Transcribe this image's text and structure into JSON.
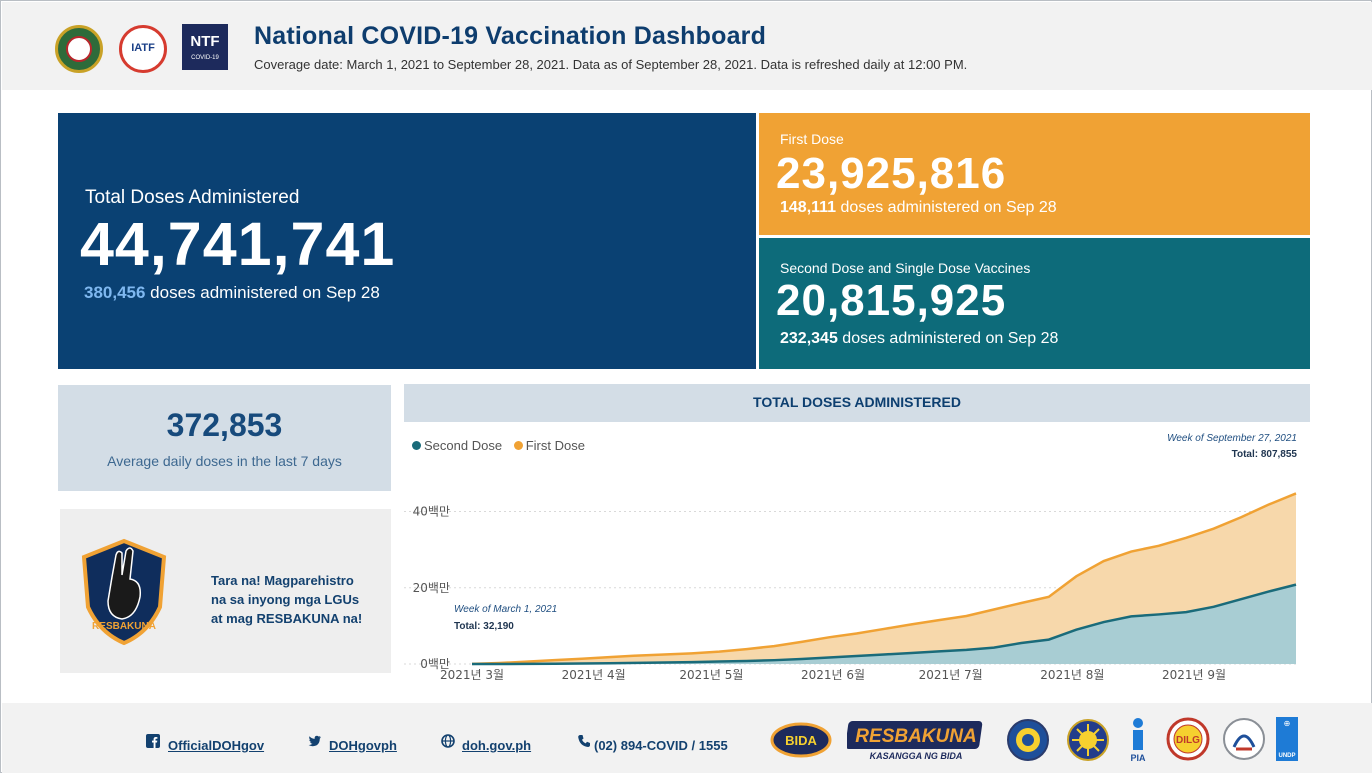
{
  "header": {
    "title": "National COVID-19 Vaccination Dashboard",
    "subtitle": "Coverage date: March 1, 2021 to September 28, 2021. Data as of September 28, 2021. Data is refreshed daily at 12:00 PM.",
    "logos": {
      "iatf": "IATF",
      "ntf": "NTF",
      "ntf_sub": "COVID-19"
    }
  },
  "total": {
    "label": "Total Doses Administered",
    "value": "44,741,741",
    "daily_value": "380,456",
    "daily_text": " doses administered on Sep 28"
  },
  "first_dose": {
    "label": "First Dose",
    "value": "23,925,816",
    "daily_value": "148,111",
    "daily_text": " doses administered on Sep 28"
  },
  "second_dose": {
    "label": "Second Dose and Single Dose Vaccines",
    "value": "20,815,925",
    "daily_value": "232,345",
    "daily_text": " doses administered on Sep 28"
  },
  "average": {
    "value": "372,853",
    "label": "Average daily doses in the last 7 days"
  },
  "promo": {
    "line1": "Tara na! Magparehistro",
    "line2": "na sa inyong mga LGUs",
    "line3": "at mag RESBAKUNA na!",
    "badge_text": "RESBAKUNA"
  },
  "chart": {
    "header": "TOTAL DOSES ADMINISTERED",
    "legend": [
      {
        "name": "Second Dose",
        "color": "#1a6b7a"
      },
      {
        "name": "First Dose",
        "color": "#f0a234"
      }
    ],
    "annotation_last": {
      "week": "Week of September 27, 2021",
      "total": "Total: 807,855"
    },
    "annotation_first": {
      "week": "Week of March 1, 2021",
      "total": "Total: 32,190"
    }
  },
  "chart_data": {
    "type": "area",
    "x": [
      "2021-03-01",
      "2021-03-08",
      "2021-03-15",
      "2021-03-22",
      "2021-03-29",
      "2021-04-05",
      "2021-04-12",
      "2021-04-19",
      "2021-04-26",
      "2021-05-03",
      "2021-05-10",
      "2021-05-17",
      "2021-05-24",
      "2021-05-31",
      "2021-06-07",
      "2021-06-14",
      "2021-06-21",
      "2021-06-28",
      "2021-07-05",
      "2021-07-12",
      "2021-07-19",
      "2021-07-26",
      "2021-08-02",
      "2021-08-09",
      "2021-08-16",
      "2021-08-23",
      "2021-08-30",
      "2021-09-06",
      "2021-09-13",
      "2021-09-20",
      "2021-09-27"
    ],
    "x_tick_labels": [
      "2021년 3월",
      "2021년 4월",
      "2021년 5월",
      "2021년 6월",
      "2021년 7월",
      "2021년 8월",
      "2021년 9월"
    ],
    "y_tick_labels": [
      "0백만",
      "20백만",
      "40백만"
    ],
    "ylim": [
      0,
      48000000
    ],
    "stacked": true,
    "series": [
      {
        "name": "Second Dose",
        "color": "#1a6b7a",
        "values": [
          0,
          0,
          20000,
          60000,
          120000,
          200000,
          300000,
          400000,
          500000,
          650000,
          800000,
          1000000,
          1300000,
          1700000,
          2100000,
          2500000,
          2900000,
          3300000,
          3700000,
          4300000,
          5500000,
          6400000,
          9000000,
          11000000,
          12500000,
          13000000,
          13600000,
          15000000,
          17000000,
          19000000,
          20815925
        ]
      },
      {
        "name": "First Dose",
        "color": "#f0a234",
        "values": [
          32190,
          250000,
          600000,
          950000,
          1250000,
          1600000,
          1900000,
          2100000,
          2300000,
          2600000,
          3100000,
          3700000,
          4500000,
          5300000,
          5900000,
          6700000,
          7500000,
          8200000,
          8900000,
          10000000,
          10500000,
          11200000,
          14000000,
          16000000,
          17000000,
          18000000,
          19500000,
          20500000,
          21500000,
          22800000,
          23925816
        ]
      }
    ]
  },
  "footer": {
    "facebook": "OfficialDOHgov",
    "twitter": "DOHgovph",
    "website": "doh.gov.ph",
    "phone": "(02) 894-COVID / 1555",
    "logo_bida": "BIDA",
    "logo_resbakuna": "RESBAKUNA",
    "logo_resbakuna_sub": "KASANGGA NG BIDA",
    "logo_pia": "PIA",
    "logo_dilg": "DILG",
    "logo_undp": "UNDP"
  }
}
